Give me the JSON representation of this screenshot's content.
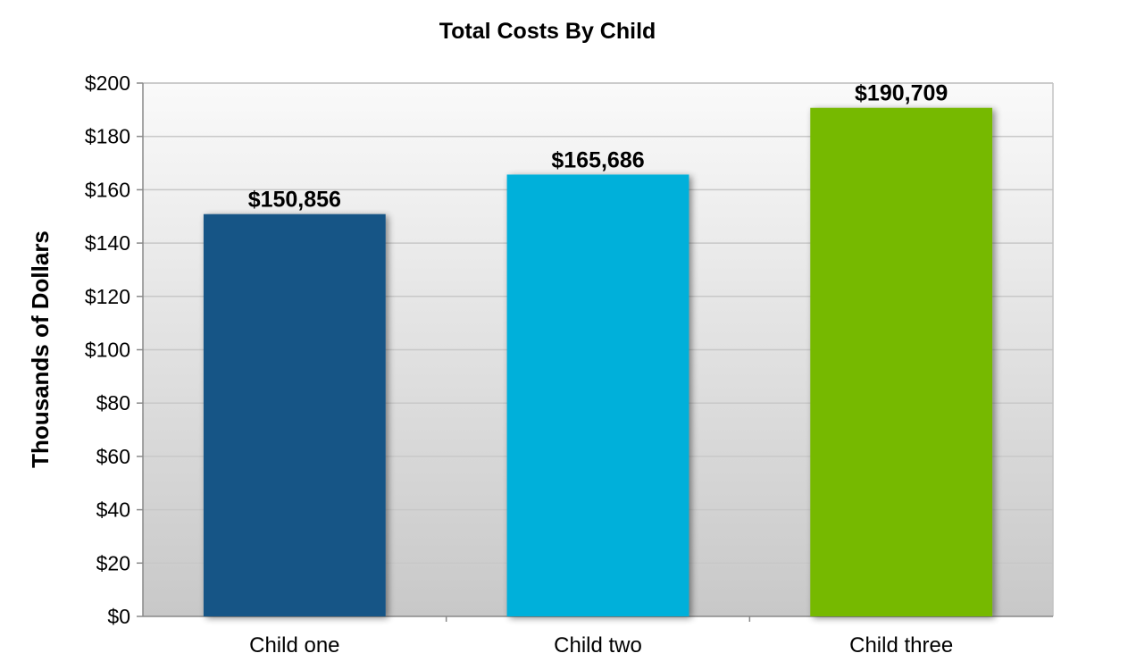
{
  "chart_data": {
    "type": "bar",
    "title": "Total Costs By Child",
    "xlabel": "",
    "ylabel": "Thousands of Dollars",
    "categories": [
      "Child one",
      "Child two",
      "Child three"
    ],
    "values": [
      150.856,
      165.686,
      190.709
    ],
    "data_labels": [
      "$150,856",
      "$165,686",
      "$190,709"
    ],
    "colors": [
      "#145586",
      "#00B0DA",
      "#76B900"
    ],
    "ylim": [
      0,
      200
    ],
    "y_ticks": [
      0,
      20,
      40,
      60,
      80,
      100,
      120,
      140,
      160,
      180,
      200
    ],
    "y_tick_labels": [
      "$0",
      "$20",
      "$40",
      "$60",
      "$80",
      "$100",
      "$120",
      "$140",
      "$160",
      "$180",
      "$200"
    ],
    "grid": true,
    "legend": "none",
    "background_gradient": [
      "#fafafa",
      "#c8c8c8"
    ],
    "gridline_color": "#c8c8c8"
  }
}
